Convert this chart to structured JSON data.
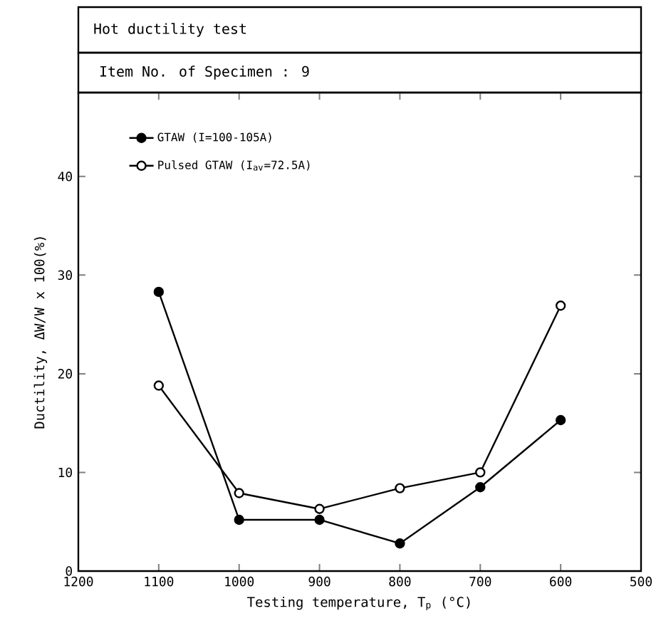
{
  "chart_data": {
    "type": "line",
    "title": "Hot ductility test",
    "subtitle": "Item No. of Specimen : 9",
    "xlabel": "Testing temperature, T$_{p}$ (°C)",
    "ylabel": "Ductility, ΔW/W x 100(%)",
    "x": [
      1100,
      1000,
      900,
      800,
      700,
      600
    ],
    "series": [
      {
        "name": "GTAW (I=100-105A)",
        "color": "#000000",
        "values": [
          28.3,
          5.2,
          5.2,
          2.8,
          8.5,
          15.3
        ]
      },
      {
        "name": "Pulsed GTAW (I$_{av}$=72.5A)",
        "color": "#000000",
        "values": [
          18.8,
          7.9,
          6.3,
          8.4,
          10,
          26.9
        ]
      }
    ],
    "xlim": [
      1200,
      500
    ],
    "xticks": [
      1200,
      1100,
      1000,
      900,
      800,
      700,
      600,
      500
    ],
    "ylim": [
      0,
      48.5
    ],
    "yticks": [
      0,
      10,
      20,
      30,
      40
    ],
    "grid": false,
    "legend": "top left",
    "marker": "circle",
    "line_style": "solid"
  }
}
